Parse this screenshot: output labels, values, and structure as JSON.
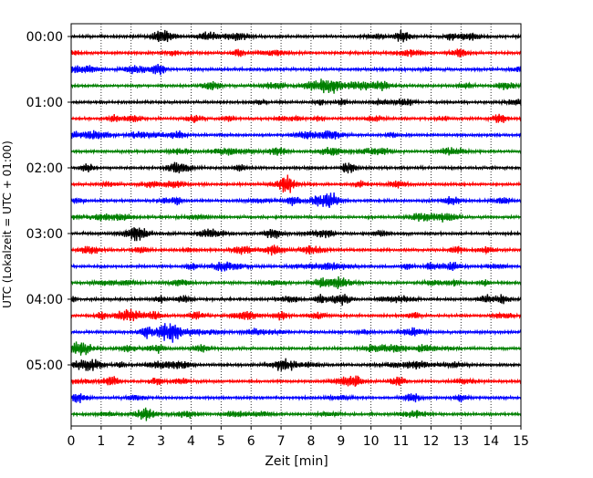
{
  "chart_data": {
    "type": "line",
    "xlabel": "Zeit  [min]",
    "ylabel": "UTC (Lokalzeit = UTC + 01:00)",
    "xlim": [
      0,
      15
    ],
    "x_ticks": [
      "0",
      "1",
      "2",
      "3",
      "4",
      "5",
      "6",
      "7",
      "8",
      "9",
      "10",
      "11",
      "12",
      "13",
      "14",
      "15"
    ],
    "hour_labels": [
      "00:00",
      "01:00",
      "02:00",
      "03:00",
      "04:00",
      "05:00"
    ],
    "traces_per_hour": 4,
    "trace_count": 24,
    "minutes_per_trace": 15,
    "trace_colors": [
      "#000000",
      "#ff0000",
      "#0000ff",
      "#008000"
    ],
    "grid_x": true,
    "grid_style": "dotted",
    "series_note": ""
  }
}
